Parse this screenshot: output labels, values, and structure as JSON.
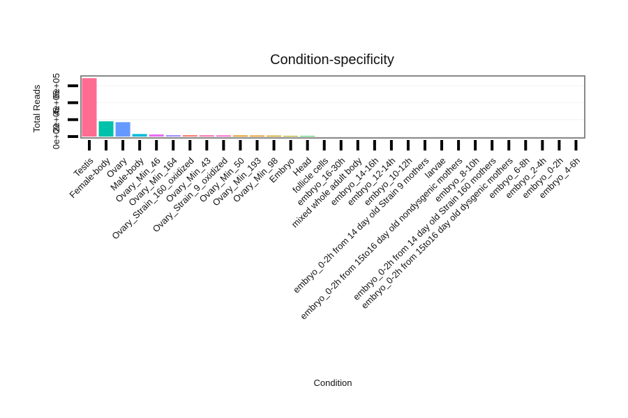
{
  "chart_data": {
    "type": "bar",
    "title": "Condition-specificity",
    "xlabel": "Condition",
    "ylabel": "Total Reads",
    "ytick_labels": [
      "0e+00",
      "2e+05",
      "4e+05",
      "6e+05"
    ],
    "ytick_values": [
      0,
      200000,
      400000,
      600000
    ],
    "ylim": [
      0,
      700000
    ],
    "grid": true,
    "categories": [
      "Testis",
      "Female-body",
      "Ovary",
      "Male-body",
      "Ovary_Min_46",
      "Ovary_Min_164",
      "Ovary_Strain_160_oxidized",
      "Ovary_Min_43",
      "Ovary_Strain_9_oxidized",
      "Ovary_Min_50",
      "Ovary_Min_193",
      "Ovary_Min_98",
      "Embryo",
      "Head",
      "follicle cells",
      "embryo_16-30h",
      "mixed whole adult body",
      "embryo_14-16h",
      "embryo_12-14h",
      "embryo_10-12h",
      "embryo_0-2h from 14 day old Strain 9 mothers",
      "larvae",
      "embryo_0-2h from 15to16 day old nondysgenic mothers",
      "embryo_8-10h",
      "embryo_0-2h from 14 day old Strain 160 mothers",
      "embryo_0-2h from 15to16 day old dysgenic mothers",
      "embryo_6-8h",
      "embryo_2-4h",
      "embryo_0-2h",
      "embryo_4-6h"
    ],
    "values": [
      690000,
      180000,
      170000,
      30000,
      25000,
      17000,
      16000,
      15000,
      14000,
      13000,
      12000,
      11000,
      8000,
      6000,
      0,
      0,
      0,
      0,
      0,
      0,
      0,
      0,
      0,
      0,
      0,
      0,
      0,
      0,
      0,
      0
    ],
    "colors": [
      "#FF6C91",
      "#00C1A9",
      "#6699FF",
      "#00BBDB",
      "#E76BF3",
      "#9F8CFF",
      "#F8766D",
      "#FF67A4",
      "#FF61C3",
      "#D89000",
      "#E58700",
      "#C99800",
      "#A3A500",
      "#00B81F",
      "#00BF7D",
      "#00C0AF",
      "#00BCD8",
      "#00B0F6",
      "#35A2FF",
      "#9590FF",
      "#C77CFF",
      "#E76BF3",
      "#FA62DB",
      "#FF62BC",
      "#FF6C91",
      "#F8766D",
      "#E58700",
      "#C99800",
      "#A3A500",
      "#6BB100"
    ]
  }
}
